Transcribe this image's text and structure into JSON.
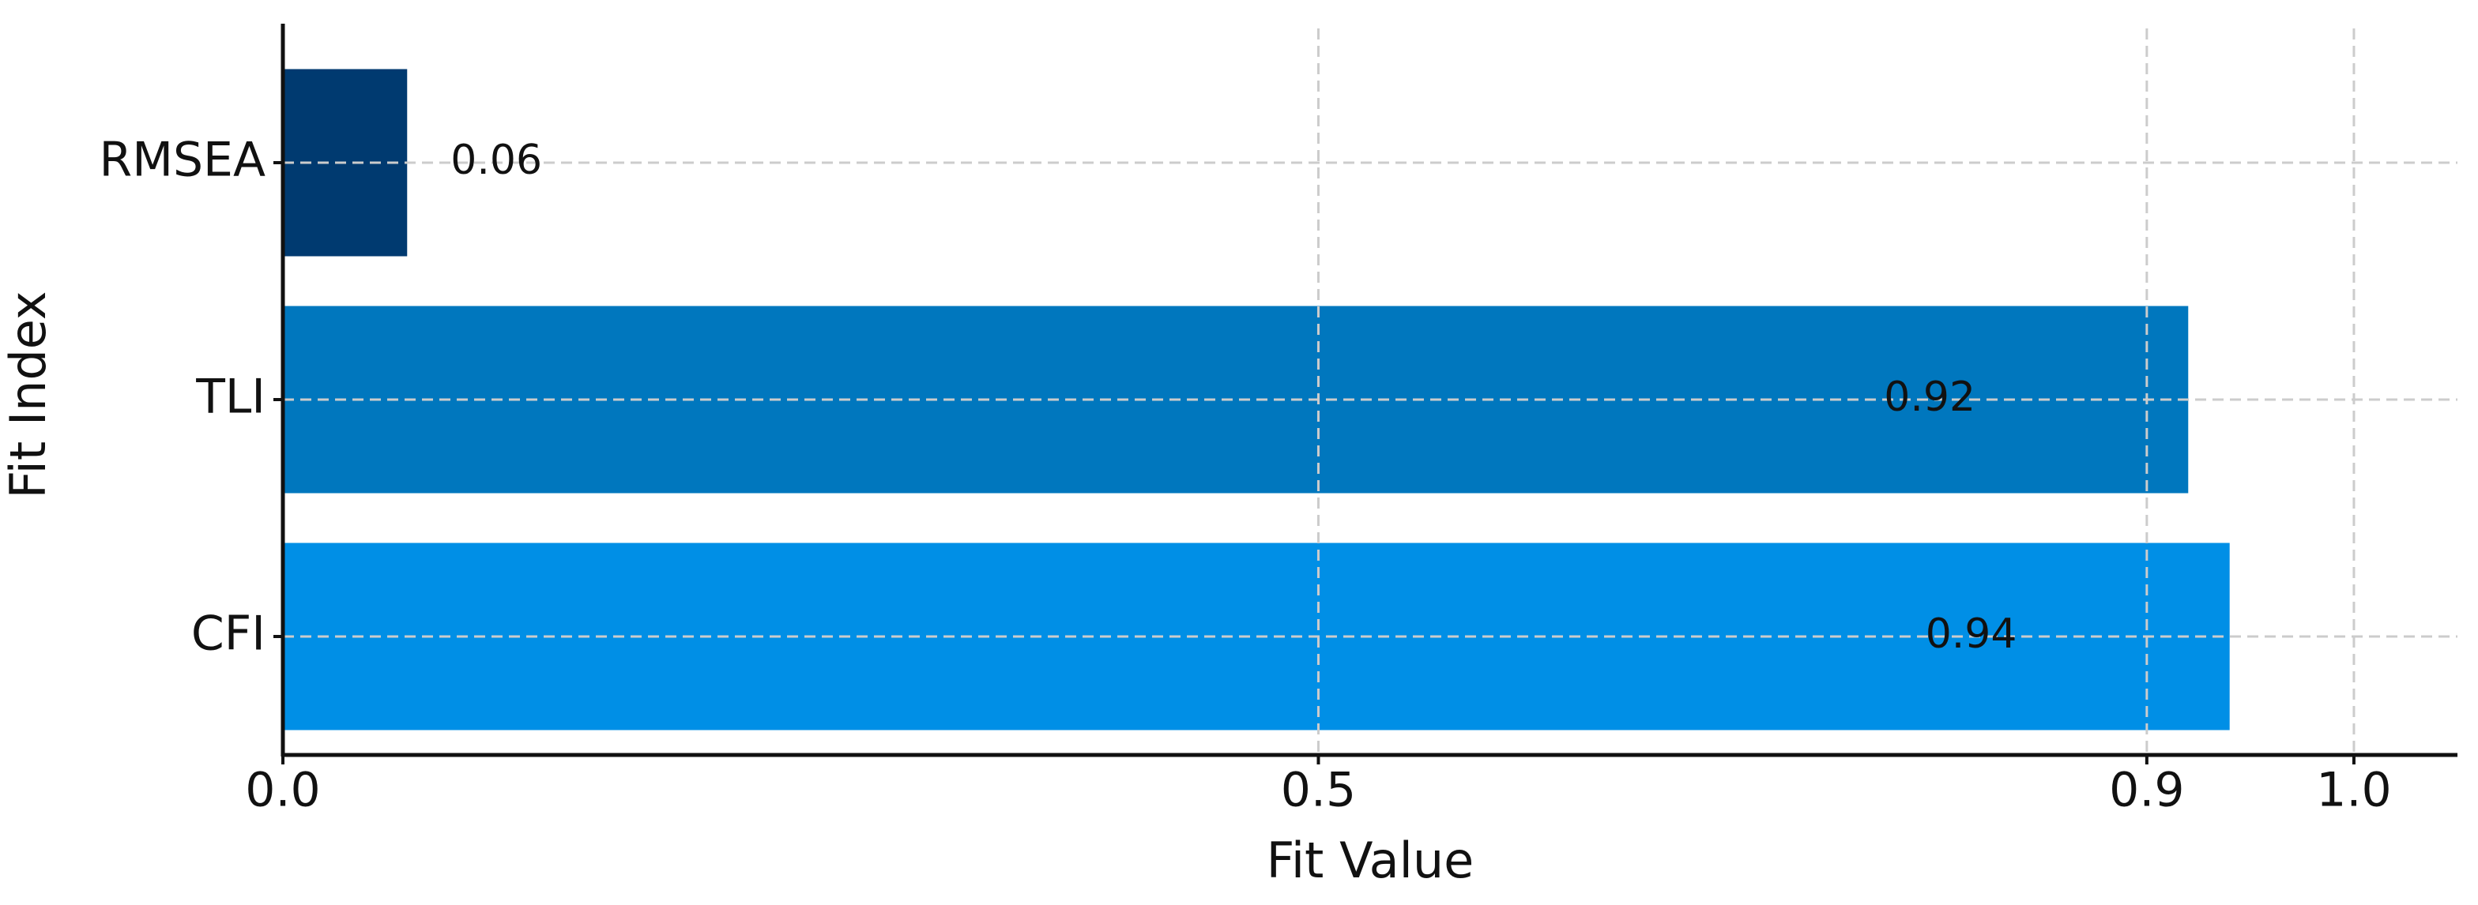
{
  "chart_data": {
    "type": "barh",
    "x_label": "Fit Value",
    "y_label": "Fit Index",
    "categories": [
      "RMSEA",
      "TLI",
      "CFI"
    ],
    "values": [
      0.06,
      0.92,
      0.94
    ],
    "colors": [
      "#003a70",
      "#0077be",
      "#008fe6"
    ],
    "xlim": [
      0,
      1.05
    ],
    "xticks": [
      {
        "value": 0,
        "label": "0.0"
      },
      0.5,
      0.9,
      {
        "value": 1,
        "label": "1.0"
      }
    ],
    "grid": true
  }
}
